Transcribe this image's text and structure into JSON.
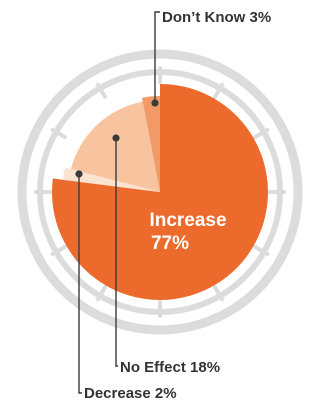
{
  "chart_data": {
    "type": "pie",
    "slices": [
      {
        "label": "Increase",
        "value": 77,
        "display": "77%",
        "color": "#ec6a2c"
      },
      {
        "label": "Decrease",
        "value": 2,
        "display": "2%",
        "color": "#fbe3d0"
      },
      {
        "label": "No Effect",
        "value": 18,
        "display": "18%",
        "color": "#f8c4a0"
      },
      {
        "label": "Don’t Know",
        "value": 3,
        "display": "3%",
        "color": "#f19a67"
      }
    ],
    "labels": {
      "dont_know": "Don’t Know 3%",
      "no_effect": "No Effect 18%",
      "decrease": "Decrease 2%",
      "increase_name": "Increase",
      "increase_value": "77%"
    },
    "legend": "none"
  },
  "colors": {
    "dial_ring": "#d9d9d9",
    "leader": "#3a3a3a"
  }
}
